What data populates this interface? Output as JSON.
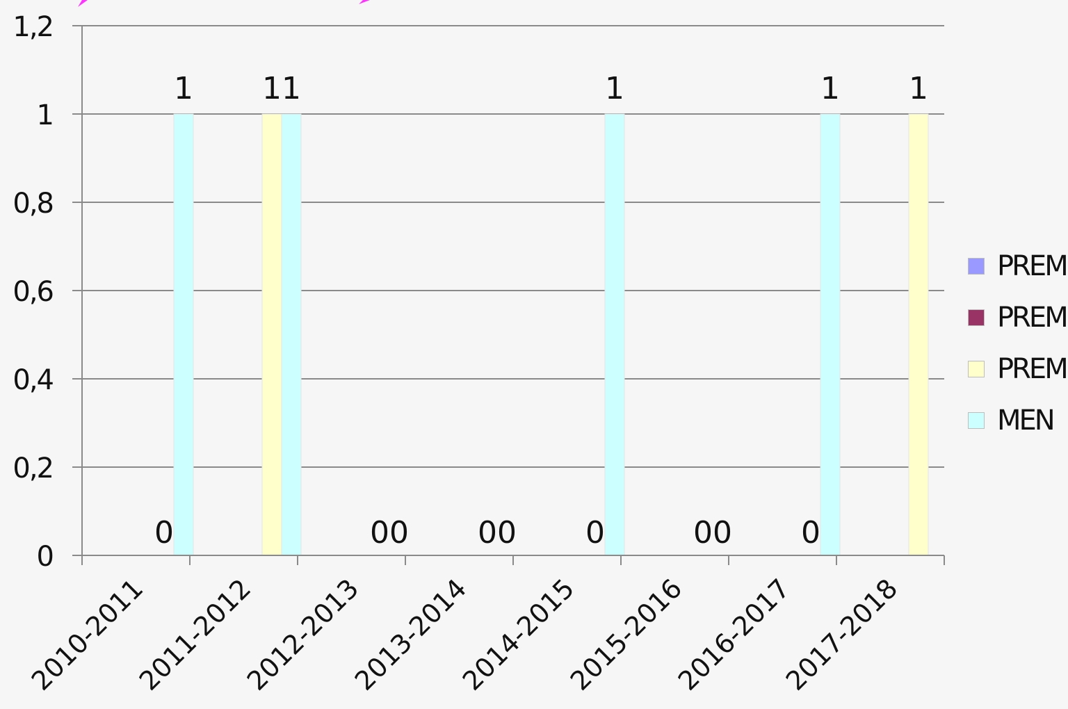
{
  "chart_data": {
    "type": "bar",
    "categories": [
      "2010-2011",
      "2011-2012",
      "2012-2013",
      "2013-2014",
      "2014-2015",
      "2015-2016",
      "2016-2017",
      "2017-2018"
    ],
    "series": [
      {
        "name": "PREM",
        "color": "#9999ff",
        "values": [
          null,
          null,
          null,
          null,
          null,
          null,
          null,
          null
        ]
      },
      {
        "name": "PREM",
        "color": "#993366",
        "values": [
          null,
          null,
          null,
          null,
          null,
          null,
          null,
          null
        ]
      },
      {
        "name": "PREM",
        "color": "#ffffcc",
        "values": [
          0,
          1,
          0,
          0,
          0,
          0,
          0,
          1
        ]
      },
      {
        "name": "MEN",
        "color": "#ccffff",
        "values": [
          1,
          1,
          0,
          0,
          1,
          0,
          1,
          null
        ]
      }
    ],
    "y_ticks": [
      "0",
      "0,2",
      "0,4",
      "0,6",
      "0,8",
      "1",
      "1,2"
    ],
    "ylim": [
      0,
      1.2
    ],
    "grid": true,
    "legend": "right"
  }
}
